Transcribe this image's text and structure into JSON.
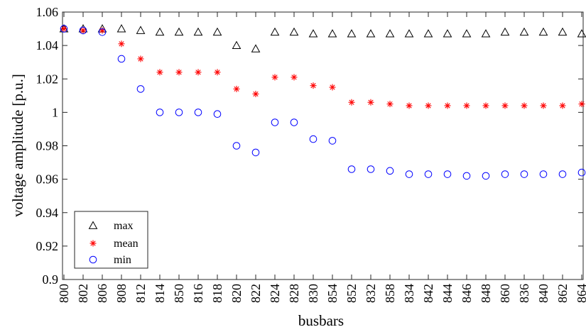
{
  "chart_data": {
    "type": "scatter",
    "categories": [
      "800",
      "802",
      "806",
      "808",
      "812",
      "814",
      "850",
      "816",
      "818",
      "820",
      "822",
      "824",
      "828",
      "830",
      "854",
      "852",
      "832",
      "858",
      "834",
      "842",
      "844",
      "846",
      "848",
      "860",
      "836",
      "840",
      "862",
      "864"
    ],
    "series": [
      {
        "name": "max",
        "marker": "triangle",
        "color": "#000000",
        "values": [
          1.05,
          1.05,
          1.05,
          1.05,
          1.049,
          1.048,
          1.048,
          1.048,
          1.048,
          1.04,
          1.038,
          1.048,
          1.048,
          1.047,
          1.047,
          1.047,
          1.047,
          1.047,
          1.047,
          1.047,
          1.047,
          1.047,
          1.047,
          1.048,
          1.048,
          1.048,
          1.048,
          1.047
        ]
      },
      {
        "name": "mean",
        "marker": "asterisk",
        "color": "#ff0000",
        "values": [
          1.05,
          1.049,
          1.049,
          1.041,
          1.032,
          1.024,
          1.024,
          1.024,
          1.024,
          1.014,
          1.011,
          1.021,
          1.021,
          1.016,
          1.015,
          1.006,
          1.006,
          1.005,
          1.004,
          1.004,
          1.004,
          1.004,
          1.004,
          1.004,
          1.004,
          1.004,
          1.004,
          1.005
        ]
      },
      {
        "name": "min",
        "marker": "circle",
        "color": "#0000ff",
        "values": [
          1.05,
          1.049,
          1.048,
          1.032,
          1.014,
          1.0,
          1.0,
          1.0,
          0.999,
          0.98,
          0.976,
          0.994,
          0.994,
          0.984,
          0.983,
          0.966,
          0.966,
          0.965,
          0.963,
          0.963,
          0.963,
          0.962,
          0.962,
          0.963,
          0.963,
          0.963,
          0.963,
          0.964
        ]
      }
    ],
    "xlabel": "busbars",
    "ylabel": "voltage amplitude [p.u.]",
    "ylim": [
      0.9,
      1.06
    ],
    "yticks": [
      0.9,
      0.92,
      0.94,
      0.96,
      0.98,
      1,
      1.02,
      1.04,
      1.06
    ],
    "ytick_labels": [
      "0.9",
      "0.92",
      "0.94",
      "0.96",
      "0.98",
      "1",
      "1.02",
      "1.04",
      "1.06"
    ],
    "grid": false,
    "legend_position": "bottom-left"
  }
}
